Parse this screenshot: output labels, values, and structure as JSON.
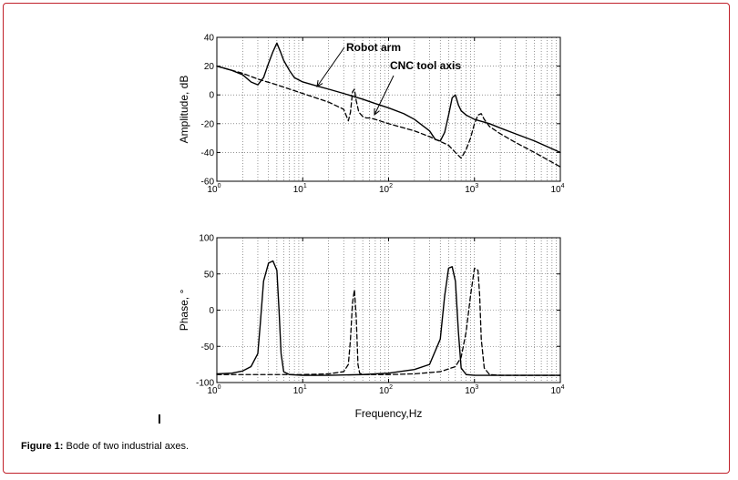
{
  "caption": {
    "label": "Figure 1:",
    "text": " Bode of two industrial axes."
  },
  "chart_data": [
    {
      "type": "line",
      "subplot": "amplitude",
      "title": "",
      "xlabel": "",
      "ylabel": "Amplitude, dB",
      "xscale": "log",
      "xlim": [
        1,
        10000
      ],
      "ylim": [
        -60,
        40
      ],
      "yticks": [
        40,
        20,
        0,
        -20,
        -40,
        -60
      ],
      "xticks": [
        {
          "base": "10",
          "exp": "0"
        },
        {
          "base": "10",
          "exp": "1"
        },
        {
          "base": "10",
          "exp": "2"
        },
        {
          "base": "10",
          "exp": "3"
        },
        {
          "base": "10",
          "exp": "4"
        }
      ],
      "grid": true,
      "annotations": [
        "Robot arm",
        "CNC tool axis"
      ],
      "series": [
        {
          "name": "Robot arm",
          "style": "solid",
          "x": [
            1,
            1.5,
            2,
            2.5,
            3,
            3.5,
            4,
            4.5,
            5,
            5.5,
            6,
            7,
            8,
            10,
            15,
            20,
            30,
            50,
            70,
            100,
            150,
            200,
            300,
            350,
            400,
            450,
            500,
            550,
            600,
            650,
            700,
            800,
            1000,
            1500,
            2000,
            3000,
            5000,
            10000
          ],
          "y": [
            20,
            17,
            14,
            9,
            7,
            12,
            22,
            30,
            36,
            30,
            24,
            17,
            12,
            9,
            6,
            4,
            1,
            -3,
            -6,
            -9,
            -13,
            -17,
            -25,
            -31,
            -32,
            -26,
            -14,
            -2,
            0,
            -7,
            -11,
            -14,
            -17,
            -20,
            -23,
            -27,
            -32,
            -40
          ]
        },
        {
          "name": "CNC tool axis",
          "style": "dashed",
          "x": [
            1,
            2,
            3,
            5,
            10,
            20,
            30,
            34,
            36,
            38,
            40,
            42,
            45,
            50,
            55,
            60,
            70,
            100,
            200,
            300,
            500,
            600,
            700,
            800,
            900,
            1000,
            1100,
            1200,
            1300,
            1500,
            2000,
            3000,
            5000,
            10000
          ],
          "y": [
            20,
            15,
            11,
            7,
            1,
            -5,
            -10,
            -18,
            -12,
            2,
            4,
            -4,
            -12,
            -15,
            -16,
            -16,
            -17,
            -20,
            -25,
            -29,
            -35,
            -40,
            -44,
            -38,
            -30,
            -20,
            -14,
            -13,
            -17,
            -22,
            -27,
            -33,
            -40,
            -50
          ]
        }
      ]
    },
    {
      "type": "line",
      "subplot": "phase",
      "title": "",
      "xlabel": "Frequency,Hz",
      "ylabel": "Phase, °",
      "xscale": "log",
      "xlim": [
        1,
        10000
      ],
      "ylim": [
        -100,
        100
      ],
      "yticks": [
        100,
        50,
        0,
        -50,
        -100
      ],
      "xticks": [
        {
          "base": "10",
          "exp": "0"
        },
        {
          "base": "10",
          "exp": "1"
        },
        {
          "base": "10",
          "exp": "2"
        },
        {
          "base": "10",
          "exp": "3"
        },
        {
          "base": "10",
          "exp": "4"
        }
      ],
      "grid": true,
      "series": [
        {
          "name": "Robot arm",
          "style": "solid",
          "x": [
            1,
            1.5,
            2,
            2.5,
            3,
            3.2,
            3.5,
            4,
            4.5,
            5,
            5.3,
            5.6,
            6,
            7,
            10,
            20,
            50,
            100,
            200,
            300,
            400,
            450,
            500,
            550,
            600,
            650,
            700,
            800,
            1000,
            2000,
            5000,
            10000
          ],
          "y": [
            -88,
            -87,
            -84,
            -78,
            -60,
            -20,
            40,
            65,
            68,
            55,
            0,
            -60,
            -85,
            -89,
            -90,
            -90,
            -89,
            -87,
            -82,
            -75,
            -40,
            20,
            58,
            60,
            40,
            -30,
            -80,
            -89,
            -90,
            -90,
            -90,
            -90
          ],
          "peak_deg": 68
        },
        {
          "name": "CNC tool axis",
          "style": "dashed",
          "x": [
            1,
            5,
            10,
            20,
            30,
            34,
            36,
            38,
            40,
            42,
            44,
            46,
            50,
            70,
            100,
            200,
            400,
            600,
            700,
            800,
            900,
            1000,
            1100,
            1150,
            1200,
            1300,
            1500,
            2000,
            10000
          ],
          "y": [
            -89,
            -89,
            -89,
            -88,
            -85,
            -75,
            -40,
            10,
            28,
            -10,
            -75,
            -87,
            -89,
            -89,
            -89,
            -88,
            -85,
            -78,
            -65,
            -30,
            20,
            58,
            55,
            20,
            -40,
            -80,
            -89,
            -90,
            -90
          ],
          "peak_deg": 60
        }
      ]
    }
  ]
}
